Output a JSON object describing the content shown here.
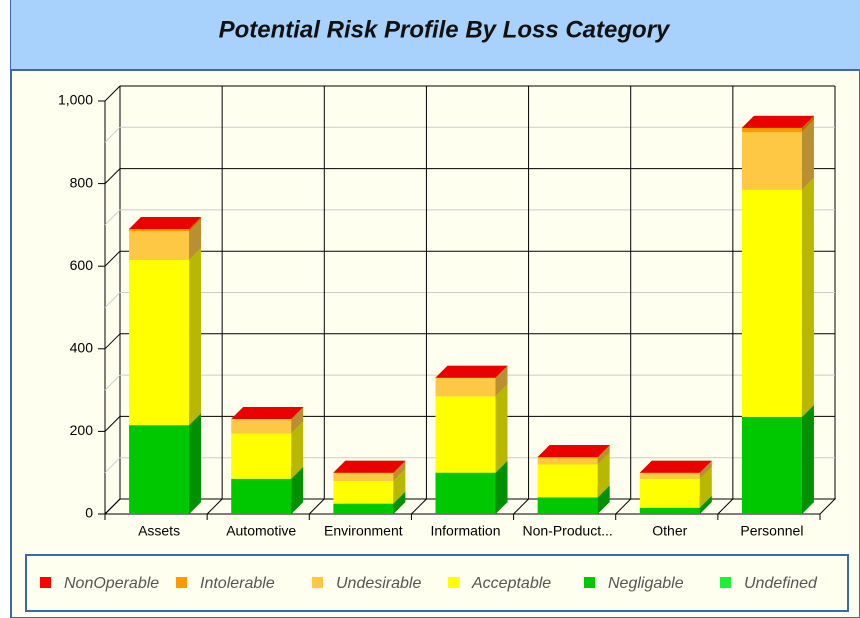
{
  "chart_data": {
    "type": "bar3d_stacked",
    "title": "Potential Risk Profile By Loss Category",
    "categories": [
      "Assets",
      "Automotive",
      "Environment",
      "Information",
      "Non-Product...",
      "Other",
      "Personnel"
    ],
    "series": [
      {
        "name": "NonOperable",
        "color": "#ff0000",
        "values": [
          0,
          0,
          0,
          0,
          0,
          0,
          0
        ]
      },
      {
        "name": "Intolerable",
        "color": "#ff9900",
        "values": [
          5,
          0,
          0,
          0,
          3,
          0,
          10
        ]
      },
      {
        "name": "Undesirable",
        "color": "#ffc844",
        "values": [
          70,
          35,
          20,
          45,
          15,
          15,
          140
        ]
      },
      {
        "name": "Acceptable",
        "color": "#ffff00",
        "values": [
          400,
          110,
          55,
          185,
          80,
          70,
          550
        ]
      },
      {
        "name": "Negligable",
        "color": "#00c800",
        "values": [
          215,
          85,
          25,
          100,
          40,
          15,
          235
        ]
      },
      {
        "name": "Undefined",
        "color": "#22ee33",
        "values": [
          0,
          0,
          0,
          0,
          0,
          0,
          0
        ]
      }
    ],
    "ylim": [
      0,
      1000
    ],
    "yticks": [
      0,
      200,
      400,
      600,
      800,
      {
        "value": 1000,
        "label": "1,000"
      }
    ],
    "grid": true,
    "legend": "bottom"
  }
}
